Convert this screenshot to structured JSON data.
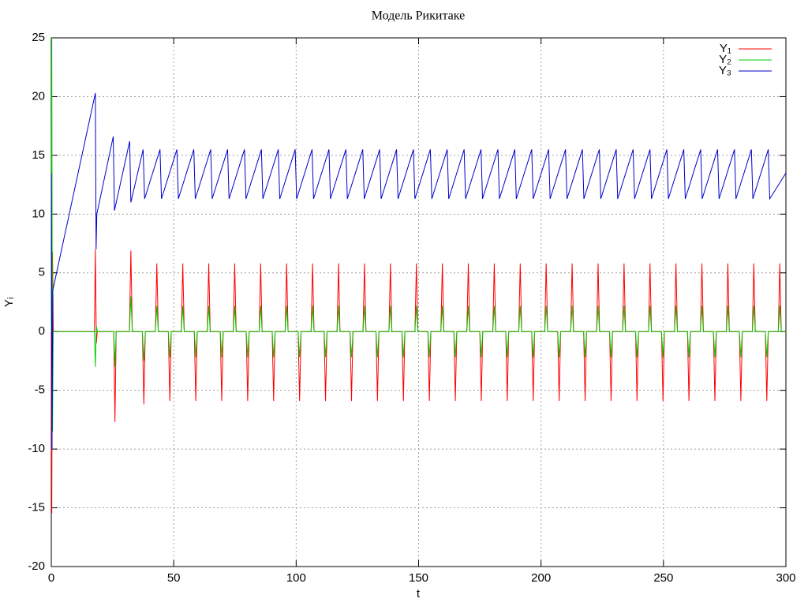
{
  "chart_data": {
    "type": "line",
    "title": "Модель Рикитаке",
    "x_label": "t",
    "y_label": "Yᵢ",
    "xlim": [
      0,
      300
    ],
    "xticks": [
      0,
      50,
      100,
      150,
      200,
      250,
      300
    ],
    "ylim": [
      -20,
      25
    ],
    "yticks": [
      -20,
      -15,
      -10,
      -5,
      0,
      5,
      10,
      15,
      20,
      25
    ],
    "grid": true,
    "legend": "top-right",
    "series": [
      {
        "name": "Y₁",
        "color": "#ff0000",
        "x": [
          0,
          0.2,
          0.5,
          0.8,
          17.6,
          18,
          18.4,
          18.8,
          25.5,
          26,
          26.5,
          31.9,
          32.5,
          33.1,
          37.2,
          37.8,
          38.4,
          42.5,
          43.1,
          43.7,
          47.8,
          48.4,
          49,
          53.1,
          53.7,
          54.3,
          58.4,
          59,
          59.6,
          63.7,
          64.3,
          64.9,
          69,
          69.6,
          70.2,
          74.3,
          74.9,
          75.5,
          79.6,
          80.2,
          80.8,
          84.9,
          85.5,
          86.1,
          90.2,
          90.8,
          91.4,
          95.5,
          96.1,
          96.7,
          100.8,
          101.4,
          102,
          106.1,
          106.7,
          107.3,
          111.4,
          112,
          112.6,
          116.7,
          117.3,
          117.9,
          122,
          122.6,
          123.2,
          127.3,
          127.9,
          128.5,
          132.6,
          133.2,
          133.8,
          137.9,
          138.5,
          139.1,
          143.2,
          143.8,
          144.4,
          148.5,
          149.1,
          149.7,
          153.8,
          154.4,
          155,
          159.1,
          159.7,
          160.3,
          164.4,
          165,
          165.6,
          169.7,
          170.3,
          170.9,
          175,
          175.6,
          176.2,
          180.3,
          180.9,
          181.5,
          185.6,
          186.2,
          186.8,
          190.9,
          191.5,
          192.1,
          196.2,
          196.8,
          197.4,
          201.5,
          202.1,
          202.7,
          206.8,
          207.4,
          208,
          212.1,
          212.7,
          213.3,
          217.4,
          218,
          218.6,
          222.7,
          223.3,
          223.9,
          228,
          228.6,
          229.2,
          233.3,
          233.9,
          234.5,
          238.6,
          239.2,
          239.8,
          243.9,
          244.5,
          245.1,
          249.2,
          249.8,
          250.4,
          254.5,
          255.1,
          255.7,
          259.8,
          260.4,
          261,
          265.1,
          265.7,
          266.3,
          270.4,
          271,
          271.6,
          275.7,
          276.3,
          276.9,
          281,
          281.6,
          282.2,
          286.3,
          286.9,
          287.5,
          291.6,
          292.2,
          292.8,
          296.9,
          297.5,
          298.1,
          300
        ],
        "values": [
          0,
          -15.5,
          6.8,
          0,
          0,
          7,
          -1,
          0,
          0,
          -7.7,
          0,
          0,
          6.9,
          0,
          0,
          -6.2,
          0,
          0,
          5.8,
          0,
          0,
          -5.9,
          0,
          0,
          5.8,
          0,
          0,
          -5.9,
          0,
          0,
          5.8,
          0,
          0,
          -5.9,
          0,
          0,
          5.8,
          0,
          0,
          -5.9,
          0,
          0,
          5.8,
          0,
          0,
          -5.9,
          0,
          0,
          5.8,
          0,
          0,
          -5.9,
          0,
          0,
          5.8,
          0,
          0,
          -5.9,
          0,
          0,
          5.8,
          0,
          0,
          -5.9,
          0,
          0,
          5.8,
          0,
          0,
          -5.9,
          0,
          0,
          5.8,
          0,
          0,
          -5.9,
          0,
          0,
          5.8,
          0,
          0,
          -5.9,
          0,
          0,
          5.8,
          0,
          0,
          -5.9,
          0,
          0,
          5.8,
          0,
          0,
          -5.9,
          0,
          0,
          5.8,
          0,
          0,
          -5.9,
          0,
          0,
          5.8,
          0,
          0,
          -5.9,
          0,
          0,
          5.8,
          0,
          0,
          -5.9,
          0,
          0,
          5.8,
          0,
          0,
          -5.9,
          0,
          0,
          5.8,
          0,
          0,
          -5.9,
          0,
          0,
          5.8,
          0,
          0,
          -5.9,
          0,
          0,
          5.8,
          0,
          0,
          -5.9,
          0,
          0,
          5.8,
          0,
          0,
          -5.9,
          0,
          0,
          5.8,
          0,
          0,
          -5.9,
          0,
          0,
          5.8,
          0,
          0,
          -5.9,
          0,
          0,
          5.8,
          0,
          0,
          -5.9,
          0,
          0,
          5.8,
          0,
          0
        ]
      },
      {
        "name": "Y₂",
        "color": "#00cc00",
        "x": [
          0,
          0.2,
          0.5,
          0.8,
          17.6,
          18,
          18.4,
          18.8,
          25.5,
          26,
          26.5,
          31.9,
          32.5,
          33.1,
          37.2,
          37.8,
          38.4,
          42.5,
          43.1,
          43.7,
          47.8,
          48.4,
          49,
          53.1,
          53.7,
          54.3,
          58.4,
          59,
          59.6,
          63.7,
          64.3,
          64.9,
          69,
          69.6,
          70.2,
          74.3,
          74.9,
          75.5,
          79.6,
          80.2,
          80.8,
          84.9,
          85.5,
          86.1,
          90.2,
          90.8,
          91.4,
          95.5,
          96.1,
          96.7,
          100.8,
          101.4,
          102,
          106.1,
          106.7,
          107.3,
          111.4,
          112,
          112.6,
          116.7,
          117.3,
          117.9,
          122,
          122.6,
          123.2,
          127.3,
          127.9,
          128.5,
          132.6,
          133.2,
          133.8,
          137.9,
          138.5,
          139.1,
          143.2,
          143.8,
          144.4,
          148.5,
          149.1,
          149.7,
          153.8,
          154.4,
          155,
          159.1,
          159.7,
          160.3,
          164.4,
          165,
          165.6,
          169.7,
          170.3,
          170.9,
          175,
          175.6,
          176.2,
          180.3,
          180.9,
          181.5,
          185.6,
          186.2,
          186.8,
          190.9,
          191.5,
          192.1,
          196.2,
          196.8,
          197.4,
          201.5,
          202.1,
          202.7,
          206.8,
          207.4,
          208,
          212.1,
          212.7,
          213.3,
          217.4,
          218,
          218.6,
          222.7,
          223.3,
          223.9,
          228,
          228.6,
          229.2,
          233.3,
          233.9,
          234.5,
          238.6,
          239.2,
          239.8,
          243.9,
          244.5,
          245.1,
          249.2,
          249.8,
          250.4,
          254.5,
          255.1,
          255.7,
          259.8,
          260.4,
          261,
          265.1,
          265.7,
          266.3,
          270.4,
          271,
          271.6,
          275.7,
          276.3,
          276.9,
          281,
          281.6,
          282.2,
          286.3,
          286.9,
          287.5,
          291.6,
          292.2,
          292.8,
          296.9,
          297.5,
          298.1,
          300
        ],
        "values": [
          0,
          25,
          -8.5,
          0,
          0,
          -3,
          0.5,
          0,
          0,
          -3,
          0,
          0,
          3,
          0,
          0,
          -2.5,
          0,
          0,
          2.2,
          0,
          0,
          -2.2,
          0,
          0,
          2.2,
          0,
          0,
          -2.2,
          0,
          0,
          2.2,
          0,
          0,
          -2.2,
          0,
          0,
          2.2,
          0,
          0,
          -2.2,
          0,
          0,
          2.2,
          0,
          0,
          -2.2,
          0,
          0,
          2.2,
          0,
          0,
          -2.2,
          0,
          0,
          2.2,
          0,
          0,
          -2.2,
          0,
          0,
          2.2,
          0,
          0,
          -2.2,
          0,
          0,
          2.2,
          0,
          0,
          -2.2,
          0,
          0,
          2.2,
          0,
          0,
          -2.2,
          0,
          0,
          2.2,
          0,
          0,
          -2.2,
          0,
          0,
          2.2,
          0,
          0,
          -2.2,
          0,
          0,
          2.2,
          0,
          0,
          -2.2,
          0,
          0,
          2.2,
          0,
          0,
          -2.2,
          0,
          0,
          2.2,
          0,
          0,
          -2.2,
          0,
          0,
          2.2,
          0,
          0,
          -2.2,
          0,
          0,
          2.2,
          0,
          0,
          -2.2,
          0,
          0,
          2.2,
          0,
          0,
          -2.2,
          0,
          0,
          2.2,
          0,
          0,
          -2.2,
          0,
          0,
          2.2,
          0,
          0,
          -2.2,
          0,
          0,
          2.2,
          0,
          0,
          -2.2,
          0,
          0,
          2.2,
          0,
          0,
          -2.2,
          0,
          0,
          2.2,
          0,
          0,
          -2.2,
          0,
          0,
          2.2,
          0,
          0,
          -2.2,
          0,
          0,
          2.2,
          0,
          0
        ]
      },
      {
        "name": "Y₃",
        "color": "#0000cc",
        "x": [
          0,
          0.3,
          0.6,
          18,
          18.3,
          18.6,
          25.3,
          25.8,
          32,
          32.5,
          37.5,
          38.1,
          44.4,
          45,
          51.3,
          51.9,
          58.2,
          58.8,
          65.1,
          65.7,
          72,
          72.6,
          78.9,
          79.5,
          85.8,
          86.4,
          92.7,
          93.3,
          99.6,
          100.2,
          106.5,
          107.1,
          113.4,
          114,
          120.3,
          120.9,
          127.2,
          127.8,
          134.1,
          134.7,
          141,
          141.6,
          147.9,
          148.5,
          154.8,
          155.4,
          161.7,
          162.3,
          168.6,
          169.2,
          175.5,
          176.1,
          182.4,
          183,
          189.3,
          189.9,
          196.2,
          196.8,
          203.1,
          203.7,
          210,
          210.6,
          216.9,
          217.5,
          223.8,
          224.4,
          230.7,
          231.3,
          237.6,
          238.2,
          244.5,
          245.1,
          251.4,
          252,
          258.3,
          258.9,
          265.2,
          265.8,
          272.1,
          272.7,
          279,
          279.6,
          285.9,
          286.5,
          292.8,
          293.4,
          300
        ],
        "values": [
          13.5,
          -10,
          3.5,
          20.3,
          7,
          10,
          16.6,
          10.3,
          16.2,
          11,
          15.5,
          11.3,
          15.5,
          11.3,
          15.5,
          11.3,
          15.5,
          11.3,
          15.5,
          11.3,
          15.5,
          11.3,
          15.5,
          11.3,
          15.5,
          11.3,
          15.5,
          11.3,
          15.5,
          11.3,
          15.5,
          11.3,
          15.5,
          11.3,
          15.5,
          11.3,
          15.5,
          11.3,
          15.5,
          11.3,
          15.5,
          11.3,
          15.5,
          11.3,
          15.5,
          11.3,
          15.5,
          11.3,
          15.5,
          11.3,
          15.5,
          11.3,
          15.5,
          11.3,
          15.5,
          11.3,
          15.5,
          11.3,
          15.5,
          11.3,
          15.5,
          11.3,
          15.5,
          11.3,
          15.5,
          11.3,
          15.5,
          11.3,
          15.5,
          11.3,
          15.5,
          11.3,
          15.5,
          11.3,
          15.5,
          11.3,
          15.5,
          11.3,
          15.5,
          11.3,
          15.5,
          11.3,
          15.5,
          11.3,
          15.5,
          11.3,
          13.5
        ]
      }
    ]
  }
}
